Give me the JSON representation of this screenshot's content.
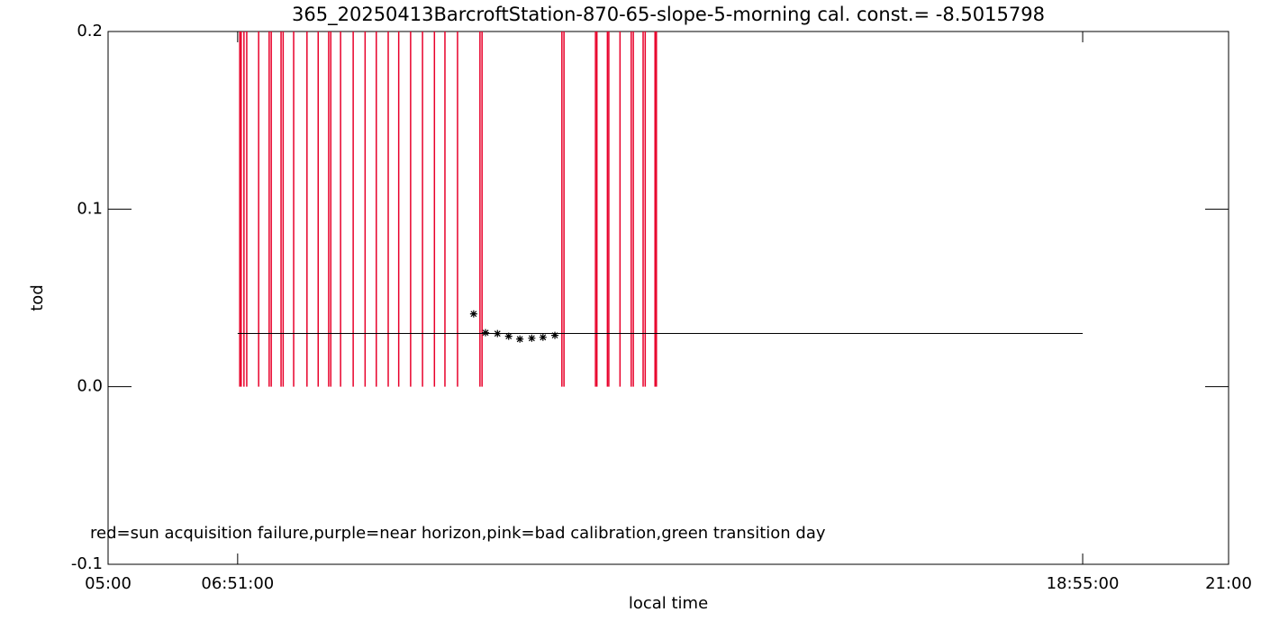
{
  "chart_data": {
    "type": "scatter",
    "title": "365_20250413BarcroftStation-870-65-slope-5-morning cal. const.= -8.5015798",
    "x_label": "local time",
    "y_label": "tod",
    "xlim": [
      5,
      21
    ],
    "ylim": [
      -0.1,
      0.2
    ],
    "xticks": [
      {
        "value": 5,
        "label": "05:00"
      },
      {
        "value": 6.85,
        "label": "06:51:00"
      },
      {
        "value": 18.9167,
        "label": "18:55:00"
      },
      {
        "value": 21,
        "label": "21:00"
      }
    ],
    "yticks": [
      -0.1,
      {
        "value": 0,
        "label": "0.0"
      },
      0.1,
      0.2
    ],
    "annotation": "red=sun acquisition failure,purple=near horizon,pink=bad calibration,green transition day",
    "event_lines": {
      "color": "#e8002a",
      "x": [
        6.88,
        6.9,
        6.94,
        6.98,
        7.15,
        7.3,
        7.33,
        7.47,
        7.5,
        7.65,
        7.84,
        8.0,
        8.15,
        8.18,
        8.32,
        8.5,
        8.67,
        8.83,
        9.0,
        9.15,
        9.32,
        9.49,
        9.66,
        9.81,
        9.99,
        10.31,
        10.34,
        11.48,
        11.51,
        11.96,
        11.98,
        12.13,
        12.15,
        12.31,
        12.47,
        12.5,
        12.64,
        12.67,
        12.81,
        12.83
      ]
    },
    "reference_line": {
      "color": "#000000",
      "x": [
        6.85,
        18.9167
      ],
      "values": [
        0.03,
        0.03
      ]
    },
    "points": {
      "color": "#000000",
      "x": [
        10.22,
        10.39,
        10.56,
        10.72,
        10.88,
        11.05,
        11.21,
        11.38
      ],
      "values": [
        0.041,
        0.0304,
        0.0299,
        0.0284,
        0.0268,
        0.0273,
        0.0278,
        0.0289
      ]
    }
  }
}
